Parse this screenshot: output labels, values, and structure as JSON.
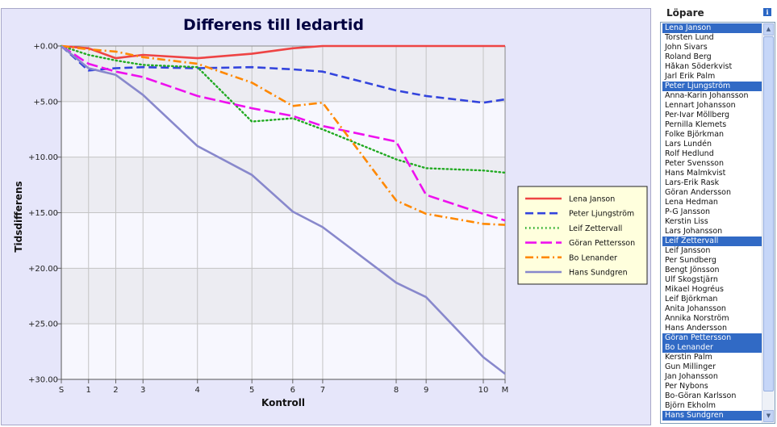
{
  "chart_data": {
    "type": "line",
    "title": "Differens till ledartid",
    "xlabel": "Kontroll",
    "ylabel": "Tidsdifferens",
    "x_ticks": [
      {
        "label": "S",
        "pos": 0
      },
      {
        "label": "1",
        "pos": 1
      },
      {
        "label": "2",
        "pos": 2
      },
      {
        "label": "3",
        "pos": 3
      },
      {
        "label": "4",
        "pos": 5
      },
      {
        "label": "5",
        "pos": 7
      },
      {
        "label": "6",
        "pos": 8.5
      },
      {
        "label": "7",
        "pos": 9.6
      },
      {
        "label": "8",
        "pos": 12.3
      },
      {
        "label": "9",
        "pos": 13.4
      },
      {
        "label": "10",
        "pos": 15.5
      },
      {
        "label": "M",
        "pos": 16.3
      }
    ],
    "x_range": [
      0,
      16.3
    ],
    "y_ticks": [
      "+0.00",
      "+5.00",
      "+10.00",
      "+15.00",
      "+20.00",
      "+25.00",
      "+30.00"
    ],
    "y_range": [
      0,
      30
    ],
    "y_inverted": true,
    "grid": true,
    "legend_position": "right",
    "series": [
      {
        "name": "Lena Janson",
        "color": "#ee4444",
        "dash": "solid",
        "values": [
          0,
          0.2,
          1.1,
          0.8,
          1.1,
          0.7,
          0.2,
          0,
          0,
          0,
          0,
          0
        ]
      },
      {
        "name": "Peter Ljungström",
        "color": "#3344dd",
        "dash": "dash",
        "values": [
          0,
          2.2,
          2.0,
          1.9,
          2.0,
          1.9,
          2.1,
          2.3,
          4.0,
          4.5,
          5.1,
          4.8
        ]
      },
      {
        "name": "Leif Zettervall",
        "color": "#22aa22",
        "dash": "dot",
        "values": [
          0,
          0.8,
          1.3,
          1.7,
          1.9,
          6.8,
          6.5,
          7.5,
          10.2,
          11.0,
          11.2,
          11.4
        ]
      },
      {
        "name": "Göran Pettersson",
        "color": "#ee11ee",
        "dash": "longdash",
        "values": [
          0,
          1.6,
          2.3,
          2.8,
          4.5,
          5.6,
          6.3,
          7.2,
          8.6,
          13.4,
          15.1,
          15.7
        ]
      },
      {
        "name": "Bo Lenander",
        "color": "#ff8800",
        "dash": "dashdot",
        "values": [
          0,
          0.3,
          0.5,
          1.0,
          1.6,
          3.3,
          5.4,
          5.1,
          13.9,
          15.1,
          16.0,
          16.1
        ]
      },
      {
        "name": "Hans Sundgren",
        "color": "#8888cc",
        "dash": "solid",
        "values": [
          0,
          2.0,
          2.6,
          4.4,
          9.0,
          11.6,
          14.9,
          16.3,
          21.3,
          22.6,
          28.0,
          29.5
        ]
      }
    ]
  },
  "sidebar": {
    "title": "Löpare",
    "info_icon": "info-icon",
    "runners": [
      {
        "name": "Lena Janson",
        "selected": true
      },
      {
        "name": "Torsten Lund",
        "selected": false
      },
      {
        "name": "John Sivars",
        "selected": false
      },
      {
        "name": "Roland Berg",
        "selected": false
      },
      {
        "name": "Håkan Söderkvist",
        "selected": false
      },
      {
        "name": "Jarl Erik Palm",
        "selected": false
      },
      {
        "name": "Peter Ljungström",
        "selected": true
      },
      {
        "name": "Anna-Karin Johansson",
        "selected": false
      },
      {
        "name": "Lennart Johansson",
        "selected": false
      },
      {
        "name": "Per-Ivar Möllberg",
        "selected": false
      },
      {
        "name": "Pernilla Klemets",
        "selected": false
      },
      {
        "name": "Folke Björkman",
        "selected": false
      },
      {
        "name": "Lars Lundén",
        "selected": false
      },
      {
        "name": "Rolf Hedlund",
        "selected": false
      },
      {
        "name": "Peter Svensson",
        "selected": false
      },
      {
        "name": "Hans Malmkvist",
        "selected": false
      },
      {
        "name": "Lars-Erik Rask",
        "selected": false
      },
      {
        "name": "Göran Andersson",
        "selected": false
      },
      {
        "name": "Lena Hedman",
        "selected": false
      },
      {
        "name": "P-G Jansson",
        "selected": false
      },
      {
        "name": "Kerstin Liss",
        "selected": false
      },
      {
        "name": "Lars Johansson",
        "selected": false
      },
      {
        "name": "Leif Zettervall",
        "selected": true
      },
      {
        "name": "Leif Jansson",
        "selected": false
      },
      {
        "name": "Per Sundberg",
        "selected": false
      },
      {
        "name": "Bengt Jönsson",
        "selected": false
      },
      {
        "name": "Ulf Skogstjärn",
        "selected": false
      },
      {
        "name": "Mikael Hogréus",
        "selected": false
      },
      {
        "name": "Leif Björkman",
        "selected": false
      },
      {
        "name": "Anita Johansson",
        "selected": false
      },
      {
        "name": "Annika Norström",
        "selected": false
      },
      {
        "name": "Hans Andersson",
        "selected": false
      },
      {
        "name": "Göran Pettersson",
        "selected": true
      },
      {
        "name": "Bo Lenander",
        "selected": true
      },
      {
        "name": "Kerstin Palm",
        "selected": false
      },
      {
        "name": "Gun Millinger",
        "selected": false
      },
      {
        "name": "Jan Johansson",
        "selected": false
      },
      {
        "name": "Per Nybons",
        "selected": false
      },
      {
        "name": "Bo-Göran Karlsson",
        "selected": false
      },
      {
        "name": "Björn Ekholm",
        "selected": false
      },
      {
        "name": "Hans Sundgren",
        "selected": true
      }
    ]
  }
}
